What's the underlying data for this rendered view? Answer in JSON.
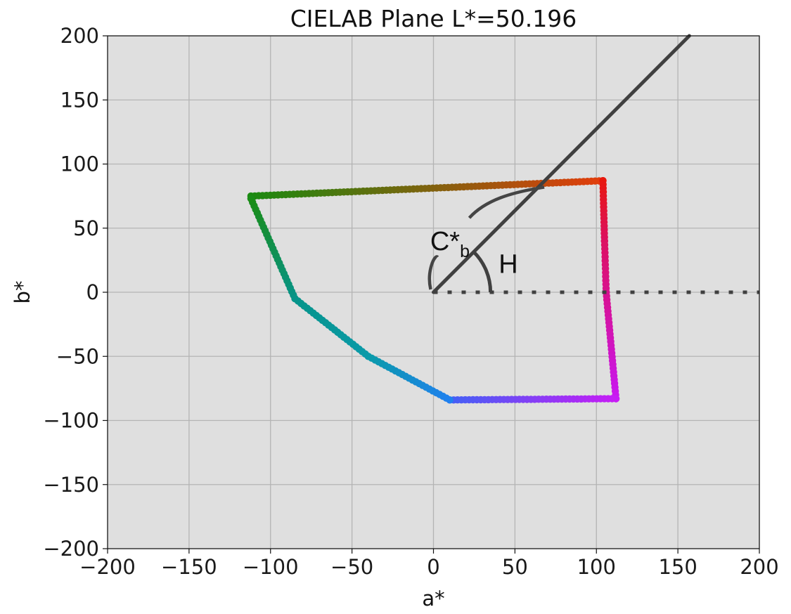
{
  "chart_data": {
    "type": "scatter",
    "title": "CIELAB Plane L*=50.196",
    "xlabel": "a*",
    "ylabel": "b*",
    "xlim": [
      -200,
      200
    ],
    "ylim": [
      -200,
      200
    ],
    "x_ticks": [
      -200,
      -150,
      -100,
      -50,
      0,
      50,
      100,
      150,
      200
    ],
    "y_ticks": [
      -200,
      -150,
      -100,
      -50,
      0,
      50,
      100,
      150,
      200
    ],
    "x_tick_labels": [
      "−200",
      "−150",
      "−100",
      "−50",
      "0",
      "50",
      "100",
      "150",
      "200"
    ],
    "y_tick_labels": [
      "−200",
      "−150",
      "−100",
      "−50",
      "0",
      "50",
      "100",
      "150",
      "200"
    ],
    "grid": true,
    "background_color": "#dfdfdf",
    "grid_color": "#b4b4b4",
    "gamut_boundary": {
      "description_colors": "hue-colored points tracing the sRGB gamut slice",
      "segments": [
        {
          "from": [
            -112,
            75
          ],
          "to": [
            104,
            87
          ],
          "color_from": "#1a8a10",
          "color_to": "#e23d0c"
        },
        {
          "from": [
            104,
            87
          ],
          "to": [
            105,
            40
          ],
          "color_from": "#e8180e",
          "color_to": "#dc1160"
        },
        {
          "from": [
            105,
            40
          ],
          "to": [
            106,
            0
          ],
          "color_from": "#dc1160",
          "color_to": "#d8128e"
        },
        {
          "from": [
            106,
            0
          ],
          "to": [
            112,
            -83
          ],
          "color_from": "#d8128e",
          "color_to": "#c818f0"
        },
        {
          "from": [
            112,
            -83
          ],
          "to": [
            10,
            -84
          ],
          "color_from": "#c81cf5",
          "color_to": "#4460f5"
        },
        {
          "from": [
            10,
            -84
          ],
          "to": [
            -40,
            -50
          ],
          "color_from": "#2080f0",
          "color_to": "#0a9aaa"
        },
        {
          "from": [
            -40,
            -50
          ],
          "to": [
            -85,
            -5
          ],
          "color_from": "#0a9aaa",
          "color_to": "#06948a"
        },
        {
          "from": [
            -85,
            -5
          ],
          "to": [
            -112,
            73
          ],
          "color_from": "#06948a",
          "color_to": "#1a8c16"
        }
      ]
    },
    "hue_line": {
      "from": [
        0,
        0
      ],
      "to": [
        157,
        200
      ],
      "color": "#404040"
    },
    "reference_line": {
      "from": [
        0,
        0
      ],
      "to": [
        200,
        0
      ],
      "style": "dotted",
      "color": "#404040"
    },
    "annotations": [
      {
        "text": "C*",
        "subscript": "b",
        "x": -2,
        "y": 33
      },
      {
        "text": "H",
        "x": 40,
        "y": 15
      }
    ]
  }
}
